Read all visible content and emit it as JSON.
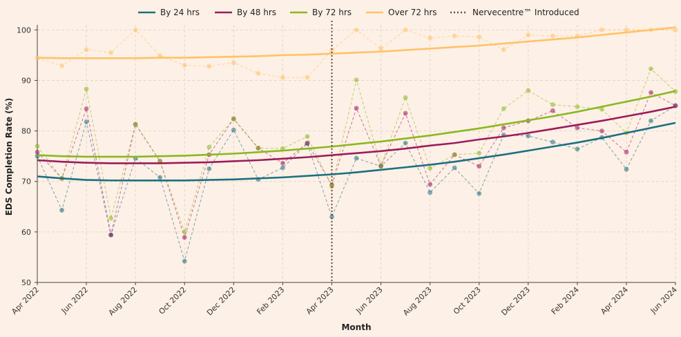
{
  "chart_data": {
    "type": "line",
    "xlabel": "Month",
    "ylabel": "EDS Completion Rate (%)",
    "ylim": [
      50,
      101
    ],
    "yticks": [
      50,
      60,
      70,
      80,
      90,
      100
    ],
    "x_tick_labels": [
      "Apr 2022",
      "Jun 2022",
      "Aug 2022",
      "Oct 2022",
      "Dec 2022",
      "Feb 2023",
      "Apr 2023",
      "Jun 2023",
      "Aug 2023",
      "Oct 2023",
      "Dec 2023",
      "Feb 2024",
      "Apr 2024",
      "Jun 2024"
    ],
    "months": [
      "Apr 2022",
      "May 2022",
      "Jun 2022",
      "Jul 2022",
      "Aug 2022",
      "Sep 2022",
      "Oct 2022",
      "Nov 2022",
      "Dec 2022",
      "Jan 2023",
      "Feb 2023",
      "Mar 2023",
      "Apr 2023",
      "May 2023",
      "Jun 2023",
      "Jul 2023",
      "Aug 2023",
      "Sep 2023",
      "Oct 2023",
      "Nov 2023",
      "Dec 2023",
      "Jan 2024",
      "Feb 2024",
      "Mar 2024",
      "Apr 2024",
      "May 2024",
      "Jun 2024"
    ],
    "grid": true,
    "legend_position": "top-center",
    "series": [
      {
        "name": "By 24 hrs",
        "color": "#1b7080",
        "values": [
          75.0,
          64.3,
          81.8,
          59.4,
          74.6,
          70.8,
          54.2,
          72.5,
          80.2,
          70.4,
          72.7,
          77.5,
          63.0,
          74.6,
          73.0,
          77.6,
          67.8,
          72.7,
          67.6,
          79.2,
          79.0,
          77.8,
          76.4,
          78.7,
          72.4,
          82.0,
          85.0
        ],
        "trend": [
          71.0,
          70.6,
          70.3,
          70.2,
          70.2,
          70.2,
          70.2,
          70.3,
          70.4,
          70.6,
          70.8,
          71.1,
          71.4,
          71.8,
          72.3,
          72.8,
          73.3,
          73.9,
          74.6,
          75.3,
          76.1,
          76.9,
          77.7,
          78.6,
          79.6,
          80.6,
          81.6
        ]
      },
      {
        "name": "By 48 hrs",
        "color": "#9b1c5c",
        "values": [
          75.8,
          70.6,
          84.4,
          59.4,
          81.3,
          74.0,
          58.9,
          75.3,
          82.4,
          76.6,
          73.6,
          77.6,
          69.3,
          84.5,
          73.1,
          83.5,
          69.4,
          75.3,
          73.0,
          80.6,
          82.0,
          84.0,
          80.6,
          80.0,
          75.8,
          87.6,
          85.0
        ],
        "trend": [
          74.2,
          73.9,
          73.7,
          73.6,
          73.6,
          73.6,
          73.7,
          73.8,
          74.0,
          74.2,
          74.5,
          74.8,
          75.2,
          75.6,
          76.0,
          76.5,
          77.1,
          77.6,
          78.3,
          78.9,
          79.6,
          80.4,
          81.2,
          82.0,
          82.9,
          83.8,
          84.8
        ]
      },
      {
        "name": "By 72 hrs",
        "color": "#8ab81e",
        "values": [
          77.0,
          70.6,
          88.3,
          62.7,
          81.3,
          74.0,
          60.0,
          76.8,
          82.4,
          76.6,
          76.5,
          78.9,
          69.0,
          90.1,
          73.1,
          86.6,
          72.6,
          75.3,
          75.6,
          84.4,
          88.0,
          85.2,
          84.8,
          84.3,
          79.6,
          92.3,
          87.8
        ],
        "trend": [
          75.2,
          75.0,
          74.9,
          74.9,
          74.9,
          75.0,
          75.1,
          75.3,
          75.5,
          75.8,
          76.1,
          76.5,
          76.9,
          77.4,
          77.9,
          78.5,
          79.1,
          79.8,
          80.5,
          81.3,
          82.1,
          82.9,
          83.8,
          84.8,
          85.8,
          86.8,
          87.9
        ]
      },
      {
        "name": "Over 72 hrs",
        "color": "#ffc266",
        "values": [
          94.4,
          92.9,
          96.1,
          95.5,
          100.0,
          94.9,
          93.0,
          92.8,
          93.5,
          91.4,
          90.6,
          90.6,
          96.0,
          100.0,
          96.3,
          100.0,
          98.4,
          98.8,
          98.6,
          96.1,
          99.0,
          98.8,
          98.8,
          100.0,
          100.0,
          100.0,
          100.0
        ],
        "trend": [
          94.5,
          94.4,
          94.4,
          94.4,
          94.4,
          94.5,
          94.5,
          94.6,
          94.7,
          94.8,
          95.0,
          95.1,
          95.3,
          95.5,
          95.7,
          96.0,
          96.3,
          96.6,
          96.9,
          97.3,
          97.7,
          98.1,
          98.5,
          99.0,
          99.5,
          100.0,
          100.5
        ]
      }
    ],
    "annotation": {
      "label": "Nervecentre™ Introduced",
      "month_index": 12,
      "color": "#6b4a3a"
    }
  }
}
